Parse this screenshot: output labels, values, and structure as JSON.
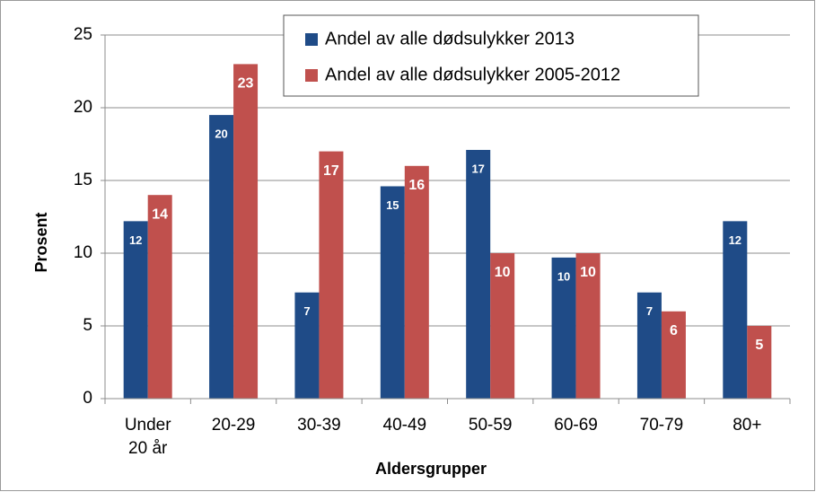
{
  "chart_data": {
    "type": "bar",
    "categories": [
      "Under 20 år",
      "20-29",
      "30-39",
      "40-49",
      "50-59",
      "60-69",
      "70-79",
      "80+"
    ],
    "series": [
      {
        "name": "Andel av alle dødsulykker 2013",
        "color": "#1f4b87",
        "values": [
          12.2,
          19.5,
          7.3,
          14.6,
          17.1,
          9.7,
          7.3,
          12.2
        ],
        "value_labels": [
          "12",
          "20",
          "7",
          "15",
          "17",
          "10",
          "7",
          "12"
        ]
      },
      {
        "name": "Andel av alle dødsulykker 2005-2012",
        "color": "#c0504d",
        "values": [
          14,
          23,
          17,
          16,
          10,
          10,
          6,
          5
        ]
      }
    ],
    "ylabel": "Prosent",
    "xlabel": "Aldersgrupper",
    "ylim": [
      0,
      25
    ],
    "yticks": [
      0,
      5,
      10,
      15,
      20,
      25
    ],
    "grid": true,
    "legend": "top"
  }
}
